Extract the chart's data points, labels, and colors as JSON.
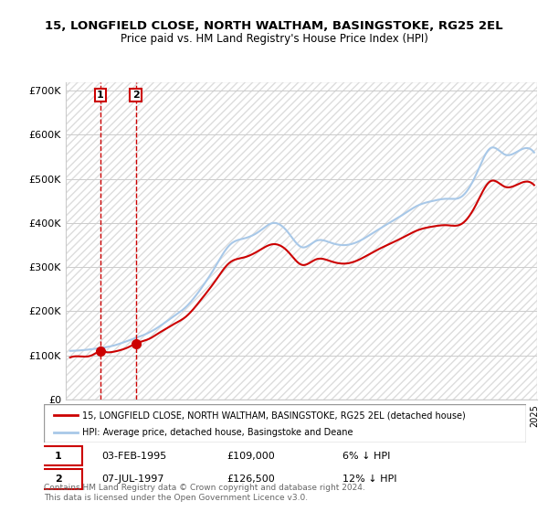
{
  "title_line1": "15, LONGFIELD CLOSE, NORTH WALTHAM, BASINGSTOKE, RG25 2EL",
  "title_line2": "Price paid vs. HM Land Registry's House Price Index (HPI)",
  "ylabel_ticks": [
    "£0",
    "£100K",
    "£200K",
    "£300K",
    "£400K",
    "£500K",
    "£600K",
    "£700K"
  ],
  "ylabel_values": [
    0,
    100000,
    200000,
    300000,
    400000,
    500000,
    600000,
    700000
  ],
  "ylim": [
    0,
    720000
  ],
  "hpi_color": "#a8c8e8",
  "price_color": "#cc0000",
  "sale1_date": "03-FEB-1995",
  "sale1_price": 109000,
  "sale1_label": "6% ↓ HPI",
  "sale2_date": "07-JUL-1997",
  "sale2_price": 126500,
  "sale2_label": "12% ↓ HPI",
  "legend_label1": "15, LONGFIELD CLOSE, NORTH WALTHAM, BASINGSTOKE, RG25 2EL (detached house)",
  "legend_label2": "HPI: Average price, detached house, Basingstoke and Deane",
  "footer": "Contains HM Land Registry data © Crown copyright and database right 2024.\nThis data is licensed under the Open Government Licence v3.0.",
  "background_hatching_color": "#e8e8e8",
  "x_start_year": 1993,
  "x_end_year": 2025
}
